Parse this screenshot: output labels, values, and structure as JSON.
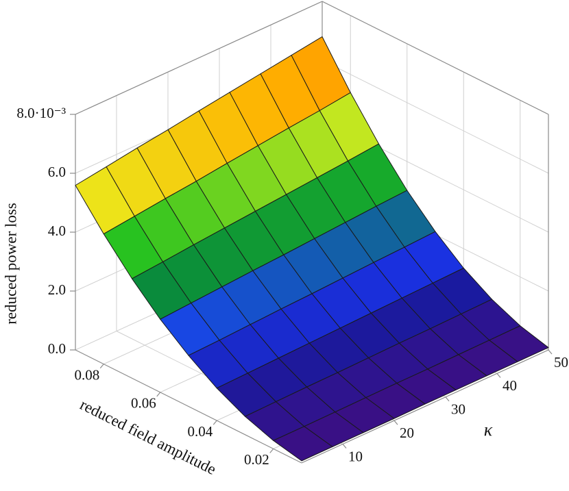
{
  "chart_data": {
    "type": "surface",
    "x_label": "reduced field amplitude",
    "y_label": "κ",
    "z_label": "reduced power loss",
    "x": [
      0.01,
      0.02,
      0.03,
      0.04,
      0.05,
      0.06,
      0.07,
      0.08,
      0.09
    ],
    "y": [
      2,
      8,
      14,
      20,
      26,
      32,
      38,
      44,
      50
    ],
    "z": [
      [
        0.07,
        0.07,
        0.07,
        0.07,
        0.08,
        0.08,
        0.08,
        0.08,
        0.08
      ],
      [
        0.28,
        0.28,
        0.29,
        0.3,
        0.31,
        0.31,
        0.32,
        0.33,
        0.34
      ],
      [
        0.62,
        0.64,
        0.66,
        0.67,
        0.69,
        0.71,
        0.72,
        0.74,
        0.76
      ],
      [
        1.1,
        1.13,
        1.16,
        1.19,
        1.22,
        1.25,
        1.28,
        1.31,
        1.34
      ],
      [
        1.73,
        1.77,
        1.82,
        1.87,
        1.91,
        1.96,
        2.01,
        2.05,
        2.1
      ],
      [
        2.48,
        2.55,
        2.62,
        2.69,
        2.75,
        2.82,
        2.89,
        2.96,
        3.02
      ],
      [
        3.38,
        3.47,
        3.57,
        3.66,
        3.75,
        3.84,
        3.93,
        4.02,
        4.12
      ],
      [
        4.42,
        4.54,
        4.66,
        4.77,
        4.9,
        5.02,
        5.14,
        5.25,
        5.38
      ],
      [
        5.59,
        5.74,
        5.9,
        6.04,
        6.2,
        6.35,
        6.5,
        6.65,
        6.8
      ]
    ],
    "xlim": [
      0.01,
      0.09
    ],
    "ylim": [
      2,
      50
    ],
    "zlim": [
      0,
      8
    ],
    "xticks": [
      0.02,
      0.04,
      0.06,
      0.08
    ],
    "yticks": [
      10,
      20,
      30,
      40,
      50
    ],
    "zticks": [
      {
        "value": 0,
        "label": "0.0"
      },
      {
        "value": 2,
        "label": "2.0"
      },
      {
        "value": 4,
        "label": "4.0"
      },
      {
        "value": 6,
        "label": "6.0"
      },
      {
        "value": 8,
        "label": "8.0·10⁻³"
      }
    ],
    "grid": true,
    "colormap": [
      "#3d0f82",
      "#1a1a9e",
      "#1a3cff",
      "#0a8a3c",
      "#20c020",
      "#e8f020",
      "#ffb000",
      "#ff7000"
    ]
  }
}
